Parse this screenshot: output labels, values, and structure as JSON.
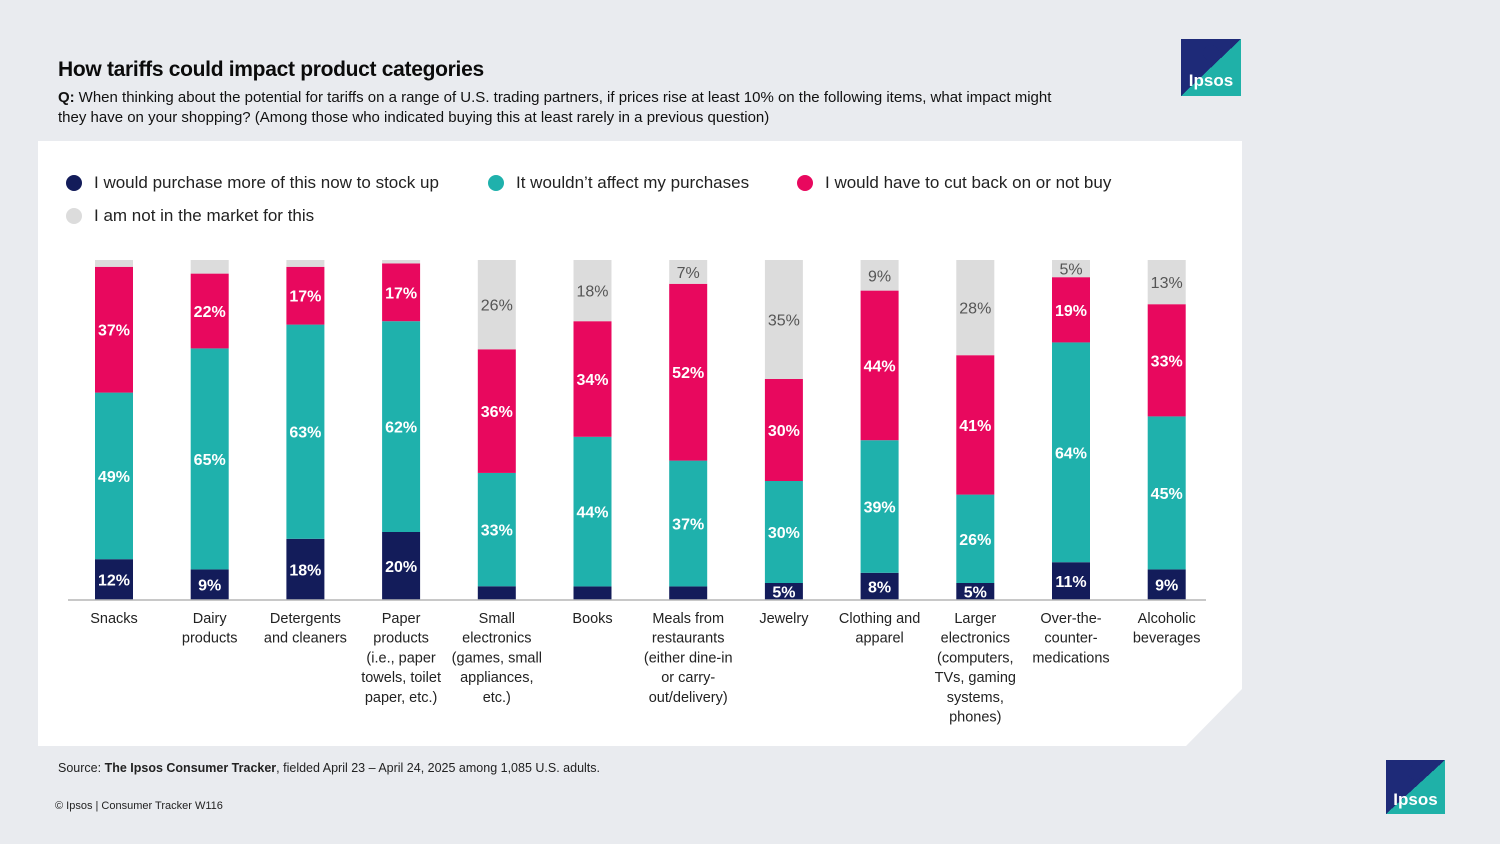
{
  "title": "How tariffs could impact product categories",
  "question_label": "Q:",
  "question_text": "When thinking about the potential for tariffs on a range of U.S. trading partners, if prices rise at least 10% on the following items, what impact might they have on your shopping? (Among those who indicated buying this at least rarely in a previous question)",
  "logo_text": "Ipsos",
  "source_label": "Source:",
  "source_bold": "The Ipsos Consumer Tracker",
  "source_rest": ", fielded April 23 – April 24, 2025 among 1,085 U.S. adults.",
  "copyright": "© Ipsos | Consumer Tracker W116",
  "colors": {
    "stock_up": "#131c5a",
    "no_effect": "#1fb1ac",
    "cut_back": "#e8085e",
    "not_in_market": "#dcdcdc"
  },
  "chart_data": {
    "type": "bar",
    "stacked": true,
    "ylim": [
      0,
      100
    ],
    "legend_position": "top-left",
    "categories": [
      [
        "Snacks"
      ],
      [
        "Dairy",
        "products"
      ],
      [
        "Detergents",
        "and cleaners"
      ],
      [
        "Paper",
        "products",
        "(i.e., paper",
        "towels, toilet",
        "paper, etc.)"
      ],
      [
        "Small",
        "electronics",
        "(games, small",
        "appliances,",
        "etc.)"
      ],
      [
        "Books"
      ],
      [
        "Meals from",
        "restaurants",
        "(either dine-in",
        "or carry-",
        "out/delivery)"
      ],
      [
        "Jewelry"
      ],
      [
        "Clothing and",
        "apparel"
      ],
      [
        "Larger",
        "electronics",
        "(computers,",
        "TVs, gaming",
        "systems,",
        "phones)"
      ],
      [
        "Over-the-",
        "counter-",
        "medications"
      ],
      [
        "Alcoholic",
        "beverages"
      ]
    ],
    "series": [
      {
        "key": "stock_up",
        "name": "I would purchase more of this now to stock up",
        "values": [
          12,
          9,
          18,
          20,
          4,
          4,
          4,
          5,
          8,
          5,
          11,
          9
        ],
        "labels": [
          "12%",
          "9%",
          "18%",
          "20%",
          "",
          "",
          "",
          "5%",
          "8%",
          "5%",
          "11%",
          "9%"
        ]
      },
      {
        "key": "no_effect",
        "name": "It wouldn’t affect my purchases",
        "values": [
          49,
          65,
          63,
          62,
          33,
          44,
          37,
          30,
          39,
          26,
          64,
          45
        ],
        "labels": [
          "49%",
          "65%",
          "63%",
          "62%",
          "33%",
          "44%",
          "37%",
          "30%",
          "39%",
          "26%",
          "64%",
          "45%"
        ]
      },
      {
        "key": "cut_back",
        "name": "I would have to cut back on or not buy",
        "values": [
          37,
          22,
          17,
          17,
          36,
          34,
          52,
          30,
          44,
          41,
          19,
          33
        ],
        "labels": [
          "37%",
          "22%",
          "17%",
          "17%",
          "36%",
          "34%",
          "52%",
          "30%",
          "44%",
          "41%",
          "19%",
          "33%"
        ]
      },
      {
        "key": "not_in_market",
        "name": "I am not in the market for this",
        "values": [
          2,
          4,
          2,
          1,
          26,
          18,
          7,
          35,
          9,
          28,
          5,
          13
        ],
        "labels": [
          "",
          "",
          "",
          "",
          "26%",
          "18%",
          "7%",
          "35%",
          "9%",
          "28%",
          "5%",
          "13%"
        ]
      }
    ]
  }
}
